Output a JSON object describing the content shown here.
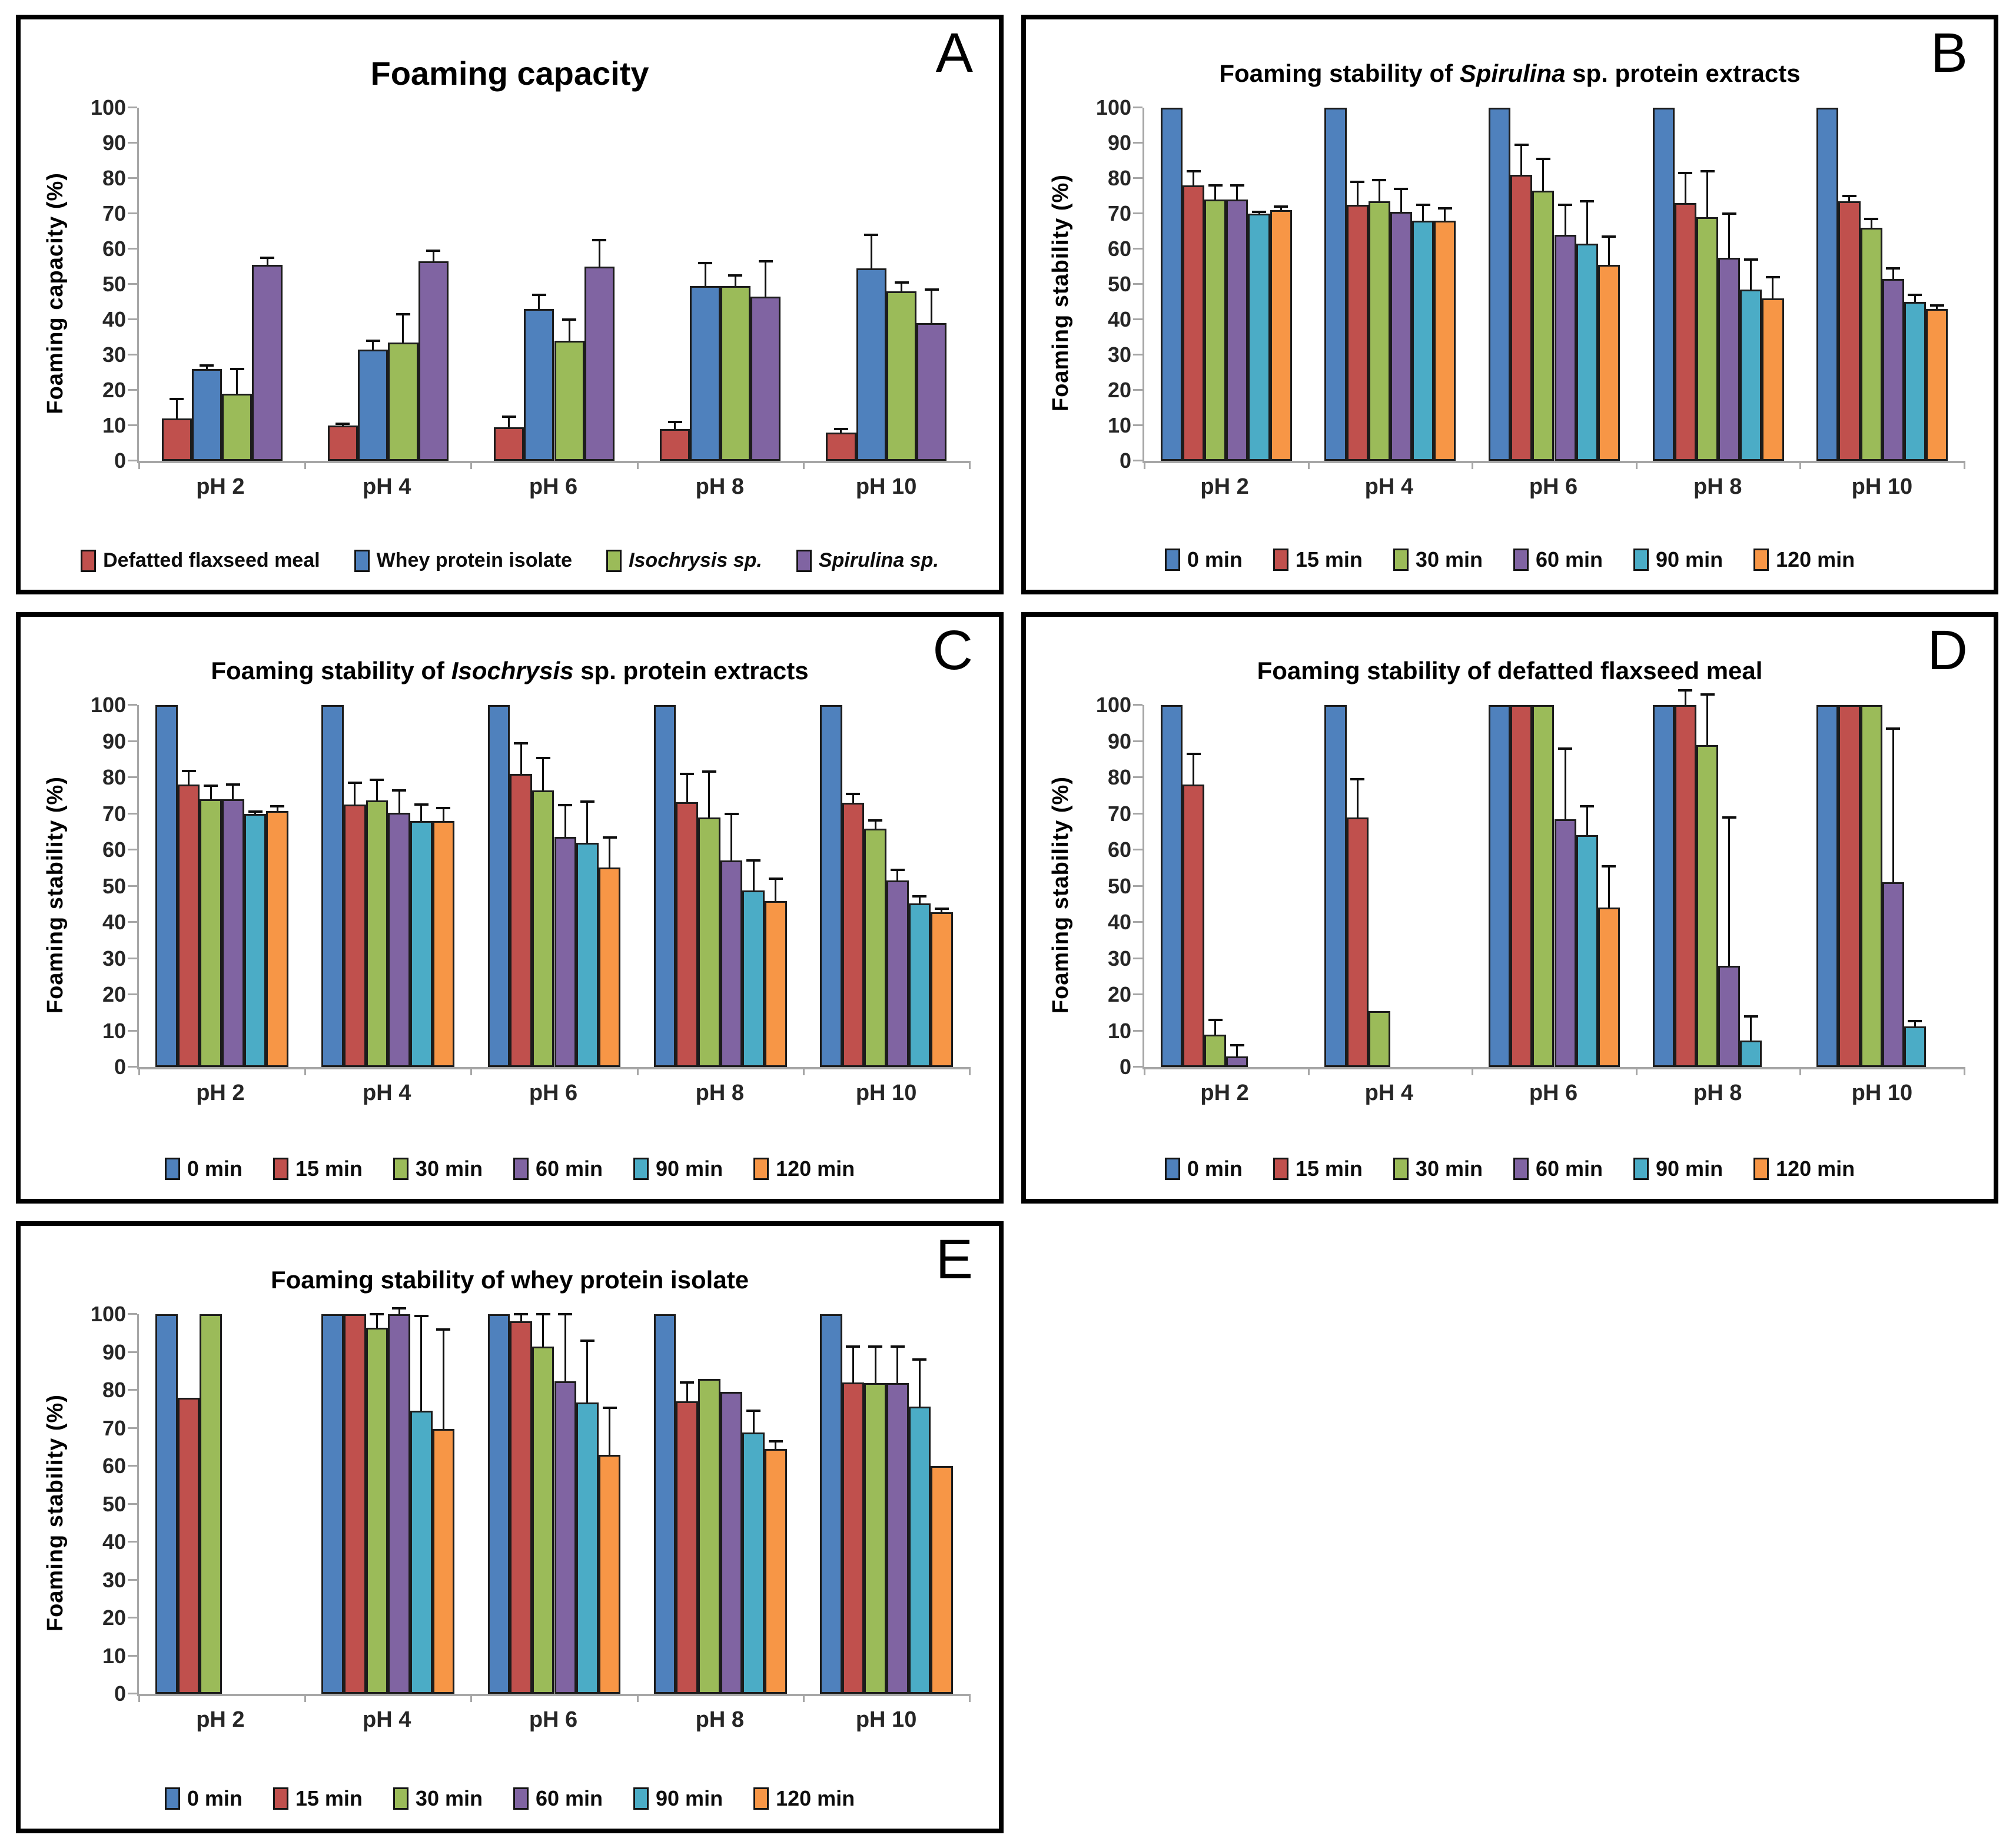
{
  "figure": {
    "background": "#ffffff",
    "panel_border_color": "#000000"
  },
  "palette": {
    "blue": "#4F81BD",
    "red": "#C0504D",
    "green": "#9BBB59",
    "purple": "#8064A2",
    "teal": "#4BACC6",
    "orange": "#F79646",
    "bar_border": "#1c1c1c",
    "axis_line": "#a6a6a6",
    "error_bar": "#0d0d0d",
    "text": "#000000"
  },
  "chart_data": [
    {
      "id": "a",
      "type": "bar",
      "letter": "A",
      "title": [
        {
          "t": "Foaming capacity",
          "i": false
        }
      ],
      "ylabel": "Foaming capacity (%)",
      "ylim": [
        0,
        100
      ],
      "ytick_step": 10,
      "grid": false,
      "legend_position": "bottom",
      "categories": [
        "pH 2",
        "pH 4",
        "pH 6",
        "pH 8",
        "pH 10"
      ],
      "series": [
        {
          "name": "Defatted flaxseed meal",
          "italic": false,
          "color": "red",
          "values": [
            12,
            10,
            9.5,
            9,
            8
          ],
          "errors": [
            5.5,
            0.5,
            3,
            2,
            1
          ]
        },
        {
          "name": "Whey protein isolate",
          "italic": false,
          "color": "blue",
          "values": [
            26,
            31.5,
            43,
            49.5,
            54.5
          ],
          "errors": [
            1,
            2.5,
            4,
            6.5,
            9.5
          ]
        },
        {
          "name": "Isochrysis sp.",
          "italic": true,
          "color": "green",
          "values": [
            19,
            33.5,
            34,
            49.5,
            48
          ],
          "errors": [
            7,
            8,
            6,
            3,
            2.5
          ]
        },
        {
          "name": "Spirulina sp.",
          "italic": true,
          "color": "purple",
          "values": [
            55.5,
            56.5,
            55,
            46.5,
            39
          ],
          "errors": [
            2,
            3,
            7.5,
            10,
            9.5
          ]
        }
      ]
    },
    {
      "id": "b",
      "type": "bar",
      "letter": "B",
      "title": [
        {
          "t": "Foaming stability of ",
          "i": false
        },
        {
          "t": "Spirulina",
          "i": true
        },
        {
          "t": " sp. protein extracts",
          "i": false
        }
      ],
      "ylabel": "Foaming stability (%)",
      "ylim": [
        0,
        100
      ],
      "ytick_step": 10,
      "grid": false,
      "legend_position": "bottom",
      "categories": [
        "pH 2",
        "pH 4",
        "pH 6",
        "pH 8",
        "pH 10"
      ],
      "series": [
        {
          "name": "0 min",
          "italic": false,
          "color": "blue",
          "values": [
            100,
            100,
            100,
            100,
            100
          ],
          "errors": [
            0,
            0,
            0,
            0,
            0
          ]
        },
        {
          "name": "15 min",
          "italic": false,
          "color": "red",
          "values": [
            78,
            72.5,
            81,
            73,
            73.5
          ],
          "errors": [
            4,
            6.5,
            8.5,
            8.5,
            1.5
          ]
        },
        {
          "name": "30 min",
          "italic": false,
          "color": "green",
          "values": [
            74,
            73.5,
            76.5,
            69,
            66
          ],
          "errors": [
            4,
            6,
            9,
            13,
            2.5
          ]
        },
        {
          "name": "60 min",
          "italic": false,
          "color": "purple",
          "values": [
            74,
            70.5,
            64,
            57.5,
            51.5
          ],
          "errors": [
            4,
            6.5,
            8.5,
            12.5,
            3
          ]
        },
        {
          "name": "90 min",
          "italic": false,
          "color": "teal",
          "values": [
            70,
            68,
            61.5,
            48.5,
            45
          ],
          "errors": [
            0.5,
            4.5,
            12,
            8.5,
            2
          ]
        },
        {
          "name": "120 min",
          "italic": false,
          "color": "orange",
          "values": [
            71,
            68,
            55.5,
            46,
            43
          ],
          "errors": [
            1,
            3.5,
            8,
            6,
            1
          ]
        }
      ]
    },
    {
      "id": "c",
      "type": "bar",
      "letter": "C",
      "title": [
        {
          "t": "Foaming stability of ",
          "i": false
        },
        {
          "t": "Isochrysis",
          "i": true
        },
        {
          "t": " sp. protein extracts",
          "i": false
        }
      ],
      "ylabel": "Foaming stability (%)",
      "ylim": [
        0,
        100
      ],
      "ytick_step": 10,
      "grid": false,
      "legend_position": "bottom",
      "categories": [
        "pH 2",
        "pH 4",
        "pH 6",
        "pH 8",
        "pH 10"
      ],
      "series": [
        {
          "name": "0 min",
          "italic": false,
          "color": "blue",
          "values": [
            100,
            100,
            100,
            100,
            100
          ],
          "errors": [
            0,
            0,
            0,
            0,
            0
          ]
        },
        {
          "name": "15 min",
          "italic": false,
          "color": "red",
          "values": [
            78,
            72.5,
            81,
            73.2,
            73
          ],
          "errors": [
            3.8,
            6,
            8.5,
            7.8,
            2.4
          ]
        },
        {
          "name": "30 min",
          "italic": false,
          "color": "green",
          "values": [
            74,
            73.6,
            76.5,
            69,
            65.8
          ],
          "errors": [
            3.8,
            5.8,
            8.8,
            12.6,
            2.4
          ]
        },
        {
          "name": "60 min",
          "italic": false,
          "color": "purple",
          "values": [
            74,
            70.3,
            63.5,
            57,
            51.5
          ],
          "errors": [
            4,
            6.2,
            8.8,
            13,
            3
          ]
        },
        {
          "name": "90 min",
          "italic": false,
          "color": "teal",
          "values": [
            70,
            68,
            62,
            48.8,
            45.2
          ],
          "errors": [
            0.5,
            4.5,
            11.3,
            8.3,
            2
          ]
        },
        {
          "name": "120 min",
          "italic": false,
          "color": "orange",
          "values": [
            70.8,
            68,
            55.2,
            45.8,
            42.8
          ],
          "errors": [
            1.2,
            3.5,
            8.2,
            6.2,
            1
          ]
        }
      ]
    },
    {
      "id": "d",
      "type": "bar",
      "letter": "D",
      "title": [
        {
          "t": "Foaming stability of defatted flaxseed meal",
          "i": false
        }
      ],
      "ylabel": "Foaming stability (%)",
      "ylim": [
        0,
        100
      ],
      "ytick_step": 10,
      "grid": false,
      "legend_position": "bottom",
      "categories": [
        "pH 2",
        "pH 4",
        "pH 6",
        "pH 8",
        "pH 10"
      ],
      "series": [
        {
          "name": "0 min",
          "italic": false,
          "color": "blue",
          "values": [
            100,
            100,
            100,
            100,
            100
          ],
          "errors": [
            0,
            0,
            0,
            0,
            0
          ]
        },
        {
          "name": "15 min",
          "italic": false,
          "color": "red",
          "values": [
            78,
            69,
            100,
            100,
            100
          ],
          "errors": [
            8.5,
            10.5,
            0,
            4,
            0
          ]
        },
        {
          "name": "30 min",
          "italic": false,
          "color": "green",
          "values": [
            9,
            15.5,
            100,
            89,
            100
          ],
          "errors": [
            4,
            0,
            0,
            14,
            0
          ]
        },
        {
          "name": "60 min",
          "italic": false,
          "color": "purple",
          "values": [
            3,
            0,
            68.5,
            28,
            51
          ],
          "errors": [
            3,
            0,
            19.5,
            41,
            42.5
          ]
        },
        {
          "name": "90 min",
          "italic": false,
          "color": "teal",
          "values": [
            0,
            0,
            64,
            7.3,
            11.2
          ],
          "errors": [
            0,
            0,
            8,
            6.7,
            1.5
          ]
        },
        {
          "name": "120 min",
          "italic": false,
          "color": "orange",
          "values": [
            0,
            0,
            44,
            0,
            0
          ],
          "errors": [
            0,
            0,
            11.5,
            0,
            0
          ]
        }
      ]
    },
    {
      "id": "e",
      "type": "bar",
      "letter": "E",
      "title": [
        {
          "t": "Foaming stability of whey protein isolate",
          "i": false
        }
      ],
      "ylabel": "Foaming stability (%)",
      "ylim": [
        0,
        100
      ],
      "ytick_step": 10,
      "grid": false,
      "legend_position": "bottom",
      "categories": [
        "pH 2",
        "pH 4",
        "pH 6",
        "pH 8",
        "pH 10"
      ],
      "series": [
        {
          "name": "0 min",
          "italic": false,
          "color": "blue",
          "values": [
            100,
            100,
            100,
            100,
            100
          ],
          "errors": [
            0,
            0,
            0,
            0,
            0
          ]
        },
        {
          "name": "15 min",
          "italic": false,
          "color": "red",
          "values": [
            78,
            100,
            98.2,
            77,
            82
          ],
          "errors": [
            0,
            0,
            1.8,
            5,
            9.5
          ]
        },
        {
          "name": "30 min",
          "italic": false,
          "color": "green",
          "values": [
            100,
            96.5,
            91.5,
            83,
            81.8
          ],
          "errors": [
            0,
            3.5,
            8.5,
            0,
            9.7
          ]
        },
        {
          "name": "60 min",
          "italic": false,
          "color": "purple",
          "values": [
            0,
            100,
            82.3,
            79.5,
            81.8
          ],
          "errors": [
            0,
            1.5,
            17.7,
            0,
            9.7
          ]
        },
        {
          "name": "90 min",
          "italic": false,
          "color": "teal",
          "values": [
            0,
            74.5,
            76.8,
            68.8,
            75.7
          ],
          "errors": [
            0,
            25,
            16.2,
            5.7,
            12.3
          ]
        },
        {
          "name": "120 min",
          "italic": false,
          "color": "orange",
          "values": [
            0,
            69.8,
            63,
            64.5,
            60
          ],
          "errors": [
            0,
            26.2,
            12.3,
            2,
            0
          ]
        }
      ]
    }
  ]
}
